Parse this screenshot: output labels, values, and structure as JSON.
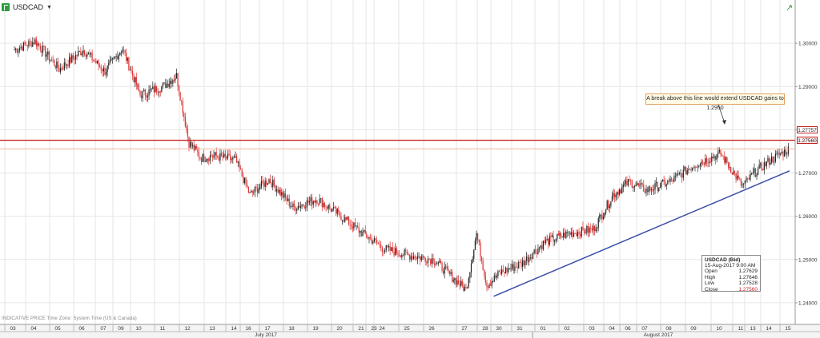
{
  "header": {
    "symbol": "USDCAD",
    "dropdown_glyph": "▼"
  },
  "footer_note": "INDICATIVE PRICE   Time Zone: System Time (US & Canada)",
  "annotation": "A break above this line would extend USDCAD gains to 1.2950",
  "price_tags": {
    "resistance": "1.27757",
    "last": "1.27560"
  },
  "info_box": {
    "title": "USDCAD (Bid)",
    "datetime": "15-Aug-2017 9:00 AM",
    "rows": [
      {
        "label": "Open",
        "value": "1.27629"
      },
      {
        "label": "High",
        "value": "1.27646"
      },
      {
        "label": "Low",
        "value": "1.27528"
      },
      {
        "label": "Close",
        "value": "1.27560"
      }
    ]
  },
  "colors": {
    "up_candle": "#222222",
    "down_candle": "#e03030",
    "resistance": "#cc2a2a",
    "last_price": "#f0a080",
    "trendline": "#3a4ea8",
    "grid": "#e6e6e6"
  },
  "chart_data": {
    "type": "candlestick",
    "symbol": "USDCAD",
    "ylim": [
      1.235,
      1.31
    ],
    "y_ticks": [
      "1.30000",
      "1.29000",
      "1.28000",
      "1.27000",
      "1.26000",
      "1.25000",
      "1.24000"
    ],
    "x_labels": [
      "03",
      "04",
      "05",
      "06",
      "07",
      "09",
      "10",
      "11",
      "12",
      "13",
      "14",
      "16",
      "17",
      "18",
      "19",
      "20",
      "21",
      "23",
      "24",
      "25",
      "26",
      "27",
      "28",
      "30",
      "31",
      "01",
      "02",
      "03",
      "04",
      "06",
      "07",
      "08",
      "09",
      "10",
      "11",
      "13",
      "14",
      "15"
    ],
    "months": [
      "July 2017",
      "August 2017"
    ],
    "resistance_level": 1.27757,
    "last_price": 1.2756,
    "trendline": {
      "start": {
        "date": "2017-07-28",
        "price": 1.2415
      },
      "end": {
        "date": "2017-08-15",
        "price": 1.2705
      }
    },
    "close_path": [
      [
        "2017-07-03",
        1.2985
      ],
      [
        "2017-07-04",
        1.3005
      ],
      [
        "2017-07-05",
        1.294
      ],
      [
        "2017-07-06",
        1.2985
      ],
      [
        "2017-07-07",
        1.2935
      ],
      [
        "2017-07-09",
        1.2988
      ],
      [
        "2017-07-10",
        1.288
      ],
      [
        "2017-07-11",
        1.2902
      ],
      [
        "2017-07-11",
        1.2925
      ],
      [
        "2017-07-12",
        1.277
      ],
      [
        "2017-07-12",
        1.2735
      ],
      [
        "2017-07-13",
        1.274
      ],
      [
        "2017-07-14",
        1.273
      ],
      [
        "2017-07-16",
        1.265
      ],
      [
        "2017-07-17",
        1.2685
      ],
      [
        "2017-07-18",
        1.262
      ],
      [
        "2017-07-19",
        1.264
      ],
      [
        "2017-07-20",
        1.26
      ],
      [
        "2017-07-21",
        1.256
      ],
      [
        "2017-07-23",
        1.254
      ],
      [
        "2017-07-24",
        1.2525
      ],
      [
        "2017-07-25",
        1.251
      ],
      [
        "2017-07-26",
        1.25
      ],
      [
        "2017-07-27",
        1.243
      ],
      [
        "2017-07-27",
        1.256
      ],
      [
        "2017-07-28",
        1.244
      ],
      [
        "2017-07-30",
        1.247
      ],
      [
        "2017-07-31",
        1.249
      ],
      [
        "2017-08-01",
        1.254
      ],
      [
        "2017-08-02",
        1.256
      ],
      [
        "2017-08-03",
        1.257
      ],
      [
        "2017-08-04",
        1.265
      ],
      [
        "2017-08-06",
        1.268
      ],
      [
        "2017-08-07",
        1.266
      ],
      [
        "2017-08-08",
        1.268
      ],
      [
        "2017-08-09",
        1.272
      ],
      [
        "2017-08-10",
        1.2745
      ],
      [
        "2017-08-11",
        1.267
      ],
      [
        "2017-08-13",
        1.27
      ],
      [
        "2017-08-14",
        1.273
      ],
      [
        "2017-08-15",
        1.2756
      ]
    ]
  }
}
